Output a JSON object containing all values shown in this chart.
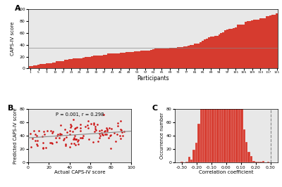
{
  "panel_A": {
    "n_participants": 121,
    "ylabel": "CAPS-IV score",
    "xlabel": "Participants",
    "bar_color": "#d63b2f",
    "bar_edge_color": "#c02020",
    "ylim": [
      0,
      100
    ],
    "yticks": [
      0,
      20,
      40,
      60,
      80,
      100
    ],
    "bg_color": "#e8e8e8",
    "label": "A",
    "hline_y": 35
  },
  "panel_B": {
    "xlabel": "Actual CAPS-IV score",
    "ylabel": "Predicted CAPS-IV score",
    "xlim": [
      0,
      100
    ],
    "ylim": [
      0,
      80
    ],
    "xticks": [
      0,
      20,
      40,
      60,
      80,
      100
    ],
    "yticks": [
      0,
      20,
      40,
      60,
      80
    ],
    "dot_color": "#cc1111",
    "line_color": "#888888",
    "annotation": "P = 0.001, r = 0.298",
    "bg_color": "#e8e8e8",
    "label": "B",
    "trend_x0": 0,
    "trend_x1": 100,
    "trend_y0": 37,
    "trend_y1": 47
  },
  "panel_C": {
    "xlabel": "Correlation coefficient",
    "ylabel": "Occurrence number",
    "xlim": [
      -0.35,
      0.35
    ],
    "ylim": [
      0,
      80
    ],
    "xticks": [
      -0.3,
      -0.2,
      -0.1,
      0.0,
      0.1,
      0.2,
      0.3
    ],
    "xticklabels": [
      "-0.30",
      "-0.20",
      "-0.10",
      "0.00",
      "0.10",
      "0.20",
      "0.30"
    ],
    "yticks": [
      0,
      20,
      40,
      60,
      80
    ],
    "bar_color": "#d63b2f",
    "bar_edge_color": "#c02020",
    "dashed_x": 0.3,
    "bg_color": "#e8e8e8",
    "label": "C",
    "hist_mean": -0.03,
    "hist_std": 0.075,
    "hist_n": 5000,
    "hist_bins": 40
  }
}
